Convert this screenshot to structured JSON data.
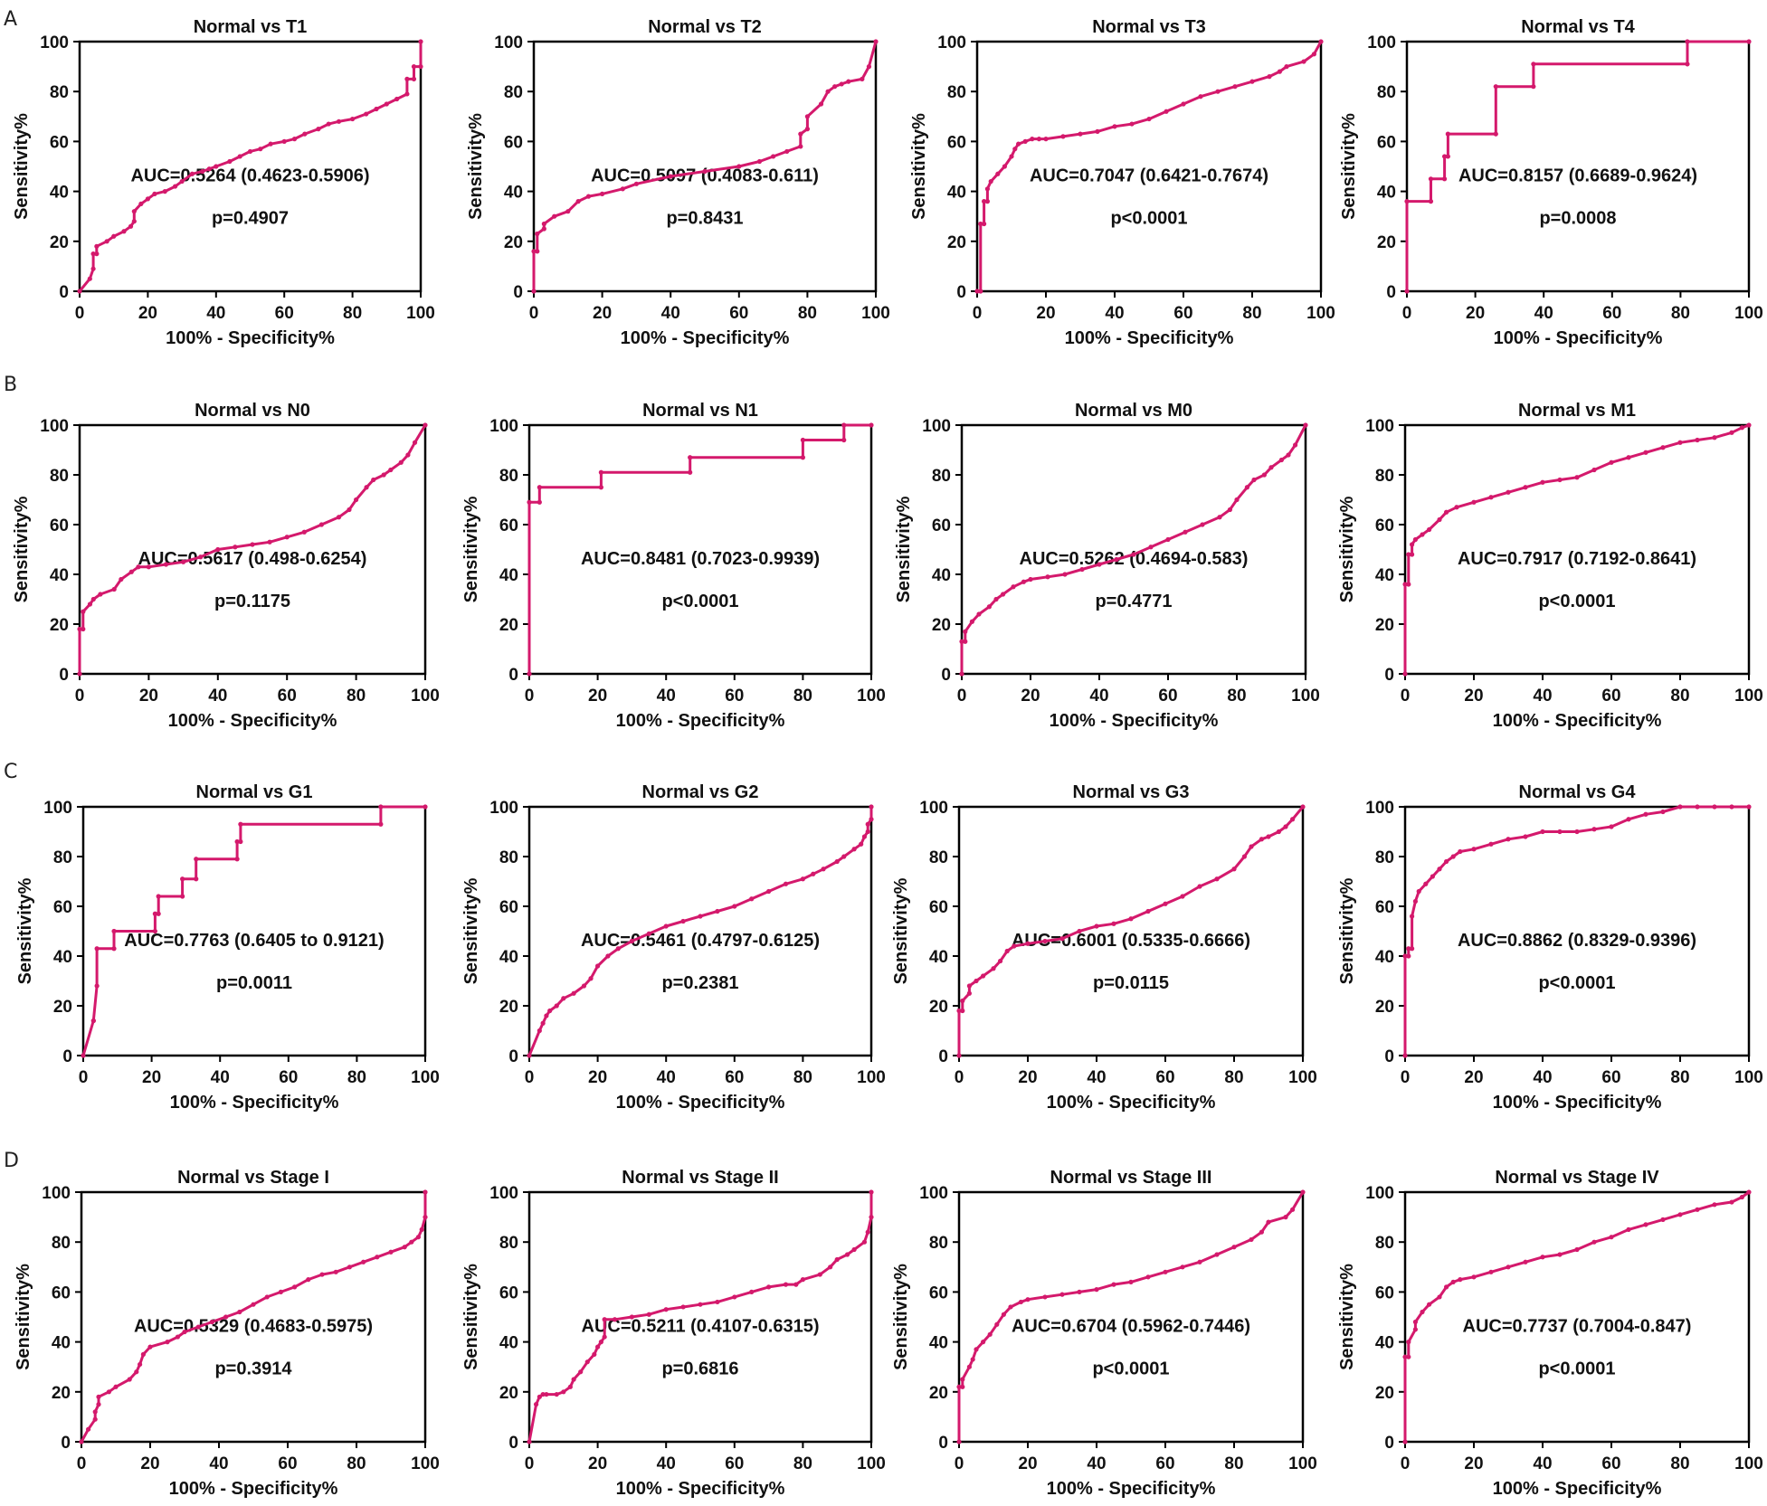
{
  "colors": {
    "curve": "#d4196c",
    "axis": "#000000"
  },
  "panel_letters": [
    "A",
    "B",
    "C",
    "D"
  ],
  "chart_data": [
    {
      "type": "line",
      "title": "Normal vs T1",
      "xlabel": "100% - Specificity%",
      "ylabel": "Sensitivity%",
      "xlim": [
        0,
        100
      ],
      "ylim": [
        0,
        100
      ],
      "ticks": [
        0,
        20,
        40,
        60,
        80,
        100
      ],
      "auc": "AUC=0.5264 (0.4623-0.5906)",
      "pvalue": "p=0.4907",
      "x": [
        0,
        3,
        4,
        4,
        5,
        5,
        8,
        10,
        13,
        15,
        16,
        16,
        18,
        20,
        22,
        25,
        28,
        30,
        33,
        36,
        38,
        40,
        44,
        47,
        50,
        53,
        56,
        60,
        63,
        66,
        70,
        73,
        76,
        80,
        84,
        87,
        90,
        93,
        96,
        96,
        98,
        98,
        100,
        100
      ],
      "y": [
        0,
        5,
        9,
        15,
        15,
        18,
        20,
        22,
        24,
        26,
        28,
        32,
        35,
        37,
        39,
        40,
        42,
        44,
        47,
        48,
        49,
        50,
        52,
        54,
        56,
        57,
        59,
        60,
        61,
        63,
        65,
        67,
        68,
        69,
        71,
        73,
        75,
        77,
        79,
        85,
        85,
        90,
        90,
        100
      ]
    },
    {
      "type": "line",
      "title": "Normal vs T2",
      "xlabel": "100% - Specificity%",
      "ylabel": "Sensitivity%",
      "xlim": [
        0,
        100
      ],
      "ylim": [
        0,
        100
      ],
      "ticks": [
        0,
        20,
        40,
        60,
        80,
        100
      ],
      "auc": "AUC=0.5097 (0.4083-0.611)",
      "pvalue": "p=0.8431",
      "x": [
        0,
        0,
        1,
        1,
        3,
        3,
        6,
        10,
        13,
        16,
        20,
        26,
        30,
        40,
        50,
        60,
        66,
        70,
        74,
        78,
        78,
        80,
        80,
        84,
        86,
        88,
        90,
        92,
        96,
        98,
        100
      ],
      "y": [
        0,
        16,
        16,
        23,
        25,
        27,
        30,
        32,
        36,
        38,
        39,
        41,
        43,
        46,
        48,
        50,
        52,
        54,
        56,
        58,
        63,
        65,
        70,
        75,
        80,
        82,
        83,
        84,
        85,
        90,
        100
      ]
    },
    {
      "type": "line",
      "title": "Normal vs T3",
      "xlabel": "100% - Specificity%",
      "ylabel": "Sensitivity%",
      "xlim": [
        0,
        100
      ],
      "ylim": [
        0,
        100
      ],
      "ticks": [
        0,
        20,
        40,
        60,
        80,
        100
      ],
      "auc": "AUC=0.7047 (0.6421-0.7674)",
      "pvalue": "p<0.0001",
      "x": [
        0,
        1,
        1,
        2,
        2,
        3,
        3,
        4,
        6,
        8,
        10,
        11,
        12,
        14,
        16,
        18,
        20,
        25,
        30,
        35,
        40,
        45,
        50,
        55,
        60,
        65,
        70,
        75,
        80,
        85,
        88,
        90,
        95,
        98,
        100
      ],
      "y": [
        0,
        0,
        27,
        27,
        36,
        36,
        41,
        44,
        47,
        50,
        54,
        57,
        59,
        60,
        61,
        61,
        61,
        62,
        63,
        64,
        66,
        67,
        69,
        72,
        75,
        78,
        80,
        82,
        84,
        86,
        88,
        90,
        92,
        95,
        100
      ]
    },
    {
      "type": "line",
      "title": "Normal vs T4",
      "xlabel": "100% - Specificity%",
      "ylabel": "Sensitivity%",
      "xlim": [
        0,
        100
      ],
      "ylim": [
        0,
        100
      ],
      "ticks": [
        0,
        20,
        40,
        60,
        80,
        100
      ],
      "auc": "AUC=0.8157 (0.6689-0.9624)",
      "pvalue": "p=0.0008",
      "x": [
        0,
        0,
        7,
        7,
        11,
        11,
        12,
        12,
        26,
        26,
        37,
        37,
        82,
        82,
        100
      ],
      "y": [
        0,
        36,
        36,
        45,
        45,
        54,
        54,
        63,
        63,
        82,
        82,
        91,
        91,
        100,
        100
      ]
    },
    {
      "type": "line",
      "title": "Normal vs N0",
      "xlabel": "100% - Specificity%",
      "ylabel": "Sensitivity%",
      "xlim": [
        0,
        100
      ],
      "ylim": [
        0,
        100
      ],
      "ticks": [
        0,
        20,
        40,
        60,
        80,
        100
      ],
      "auc": "AUC=0.5617 (0.498-0.6254)",
      "pvalue": "p=0.1175",
      "x": [
        0,
        0,
        1,
        1,
        3,
        4,
        6,
        10,
        12,
        15,
        17,
        20,
        25,
        30,
        35,
        40,
        45,
        50,
        55,
        60,
        65,
        70,
        75,
        78,
        80,
        83,
        85,
        88,
        90,
        93,
        95,
        97,
        100
      ],
      "y": [
        0,
        18,
        18,
        25,
        28,
        30,
        32,
        34,
        38,
        41,
        43,
        43,
        44,
        45,
        47,
        50,
        51,
        52,
        53,
        55,
        57,
        60,
        63,
        66,
        70,
        75,
        78,
        80,
        82,
        85,
        88,
        93,
        100
      ]
    },
    {
      "type": "line",
      "title": "Normal vs N1",
      "xlabel": "100% - Specificity%",
      "ylabel": "Sensitivity%",
      "xlim": [
        0,
        100
      ],
      "ylim": [
        0,
        100
      ],
      "ticks": [
        0,
        20,
        40,
        60,
        80,
        100
      ],
      "auc": "AUC=0.8481 (0.7023-0.9939)",
      "pvalue": "p<0.0001",
      "x": [
        0,
        0,
        3,
        3,
        21,
        21,
        47,
        47,
        80,
        80,
        92,
        92,
        100
      ],
      "y": [
        0,
        69,
        69,
        75,
        75,
        81,
        81,
        87,
        87,
        94,
        94,
        100,
        100
      ]
    },
    {
      "type": "line",
      "title": "Normal vs M0",
      "xlabel": "100% - Specificity%",
      "ylabel": "Sensitivity%",
      "xlim": [
        0,
        100
      ],
      "ylim": [
        0,
        100
      ],
      "ticks": [
        0,
        20,
        40,
        60,
        80,
        100
      ],
      "auc": "AUC=0.5262 (0.4694-0.583)",
      "pvalue": "p=0.4771",
      "x": [
        0,
        0,
        1,
        1,
        3,
        5,
        8,
        10,
        12,
        15,
        18,
        20,
        25,
        30,
        35,
        40,
        45,
        50,
        55,
        60,
        65,
        70,
        75,
        78,
        80,
        83,
        85,
        88,
        90,
        93,
        95,
        97,
        100
      ],
      "y": [
        0,
        13,
        13,
        17,
        21,
        24,
        27,
        30,
        32,
        35,
        37,
        38,
        39,
        40,
        42,
        44,
        46,
        48,
        51,
        54,
        57,
        60,
        63,
        66,
        70,
        75,
        78,
        80,
        83,
        86,
        88,
        92,
        100
      ]
    },
    {
      "type": "line",
      "title": "Normal vs M1",
      "xlabel": "100% - Specificity%",
      "ylabel": "Sensitivity%",
      "xlim": [
        0,
        100
      ],
      "ylim": [
        0,
        100
      ],
      "ticks": [
        0,
        20,
        40,
        60,
        80,
        100
      ],
      "auc": "AUC=0.7917 (0.7192-0.8641)",
      "pvalue": "p<0.0001",
      "x": [
        0,
        0,
        1,
        1,
        2,
        2,
        3,
        5,
        7,
        10,
        12,
        15,
        20,
        25,
        30,
        35,
        40,
        45,
        50,
        55,
        60,
        65,
        70,
        75,
        80,
        85,
        90,
        95,
        98,
        100
      ],
      "y": [
        0,
        36,
        36,
        48,
        48,
        52,
        54,
        56,
        58,
        62,
        65,
        67,
        69,
        71,
        73,
        75,
        77,
        78,
        79,
        82,
        85,
        87,
        89,
        91,
        93,
        94,
        95,
        97,
        99,
        100
      ]
    },
    {
      "type": "line",
      "title": "Normal vs G1",
      "xlabel": "100% - Specificity%",
      "ylabel": "Sensitivity%",
      "xlim": [
        0,
        100
      ],
      "ylim": [
        0,
        100
      ],
      "ticks": [
        0,
        20,
        40,
        60,
        80,
        100
      ],
      "auc": "AUC=0.7763 (0.6405 to 0.9121)",
      "pvalue": "p=0.0011",
      "x": [
        0,
        3,
        3,
        4,
        4,
        9,
        9,
        21,
        21,
        22,
        22,
        29,
        29,
        33,
        33,
        45,
        45,
        46,
        46,
        87,
        87,
        100
      ],
      "y": [
        0,
        14,
        14,
        28,
        43,
        43,
        50,
        50,
        57,
        57,
        64,
        64,
        71,
        71,
        79,
        79,
        86,
        86,
        93,
        93,
        100,
        100
      ]
    },
    {
      "type": "line",
      "title": "Normal vs G2",
      "xlabel": "100% - Specificity%",
      "ylabel": "Sensitivity%",
      "xlim": [
        0,
        100
      ],
      "ylim": [
        0,
        100
      ],
      "ticks": [
        0,
        20,
        40,
        60,
        80,
        100
      ],
      "auc": "AUC=0.5461 (0.4797-0.6125)",
      "pvalue": "p=0.2381",
      "x": [
        0,
        3,
        4,
        5,
        6,
        8,
        10,
        13,
        16,
        18,
        20,
        23,
        26,
        30,
        35,
        40,
        45,
        50,
        55,
        60,
        65,
        70,
        75,
        80,
        83,
        86,
        90,
        92,
        95,
        97,
        98,
        99,
        99,
        100,
        100
      ],
      "y": [
        0,
        10,
        13,
        16,
        18,
        20,
        23,
        25,
        28,
        31,
        36,
        40,
        43,
        46,
        49,
        52,
        54,
        56,
        58,
        60,
        63,
        66,
        69,
        71,
        73,
        75,
        78,
        80,
        83,
        85,
        88,
        90,
        93,
        95,
        100
      ]
    },
    {
      "type": "line",
      "title": "Normal vs G3",
      "xlabel": "100% - Specificity%",
      "ylabel": "Sensitivity%",
      "xlim": [
        0,
        100
      ],
      "ylim": [
        0,
        100
      ],
      "ticks": [
        0,
        20,
        40,
        60,
        80,
        100
      ],
      "auc": "AUC=0.6001 (0.5335-0.6666)",
      "pvalue": "p=0.0115",
      "x": [
        0,
        0,
        1,
        1,
        3,
        3,
        5,
        7,
        10,
        12,
        14,
        16,
        20,
        25,
        30,
        35,
        40,
        45,
        50,
        55,
        60,
        65,
        70,
        75,
        80,
        83,
        85,
        88,
        90,
        93,
        95,
        97,
        100
      ],
      "y": [
        0,
        18,
        18,
        22,
        25,
        28,
        30,
        32,
        35,
        38,
        42,
        44,
        45,
        46,
        47,
        50,
        52,
        53,
        55,
        58,
        61,
        64,
        68,
        71,
        75,
        80,
        84,
        87,
        88,
        90,
        92,
        95,
        100
      ]
    },
    {
      "type": "line",
      "title": "Normal vs G4",
      "xlabel": "100% - Specificity%",
      "ylabel": "Sensitivity%",
      "xlim": [
        0,
        100
      ],
      "ylim": [
        0,
        100
      ],
      "ticks": [
        0,
        20,
        40,
        60,
        80,
        100
      ],
      "auc": "AUC=0.8862 (0.8329-0.9396)",
      "pvalue": "p<0.0001",
      "x": [
        0,
        0,
        1,
        1,
        2,
        2,
        3,
        4,
        6,
        8,
        10,
        12,
        14,
        16,
        20,
        25,
        30,
        35,
        40,
        45,
        50,
        55,
        60,
        65,
        70,
        75,
        80,
        85,
        90,
        95,
        100
      ],
      "y": [
        0,
        40,
        40,
        43,
        43,
        56,
        62,
        66,
        69,
        72,
        75,
        78,
        80,
        82,
        83,
        85,
        87,
        88,
        90,
        90,
        90,
        91,
        92,
        95,
        97,
        98,
        100,
        100,
        100,
        100,
        100
      ]
    },
    {
      "type": "line",
      "title": "Normal vs Stage I",
      "xlabel": "100% - Specificity%",
      "ylabel": "Sensitivity%",
      "xlim": [
        0,
        100
      ],
      "ylim": [
        0,
        100
      ],
      "ticks": [
        0,
        20,
        40,
        60,
        80,
        100
      ],
      "auc": "AUC=0.5329 (0.4683-0.5975)",
      "pvalue": "p=0.3914",
      "x": [
        0,
        2,
        4,
        4,
        5,
        5,
        8,
        10,
        14,
        16,
        17,
        18,
        20,
        25,
        28,
        30,
        34,
        38,
        42,
        46,
        50,
        54,
        58,
        62,
        66,
        70,
        74,
        78,
        82,
        86,
        90,
        94,
        96,
        98,
        99,
        100,
        100
      ],
      "y": [
        0,
        5,
        9,
        12,
        15,
        18,
        20,
        22,
        25,
        28,
        31,
        35,
        38,
        40,
        42,
        44,
        46,
        48,
        50,
        52,
        55,
        58,
        60,
        62,
        65,
        67,
        68,
        70,
        72,
        74,
        76,
        78,
        80,
        82,
        85,
        90,
        100
      ]
    },
    {
      "type": "line",
      "title": "Normal vs Stage II",
      "xlabel": "100% - Specificity%",
      "ylabel": "Sensitivity%",
      "xlim": [
        0,
        100
      ],
      "ylim": [
        0,
        100
      ],
      "ticks": [
        0,
        20,
        40,
        60,
        80,
        100
      ],
      "auc": "AUC=0.5211 (0.4107-0.6315)",
      "pvalue": "p=0.6816",
      "x": [
        0,
        2,
        3,
        4,
        5,
        8,
        10,
        12,
        13,
        15,
        17,
        19,
        20,
        21,
        22,
        22,
        25,
        30,
        35,
        40,
        45,
        50,
        55,
        60,
        65,
        70,
        75,
        78,
        80,
        85,
        88,
        90,
        93,
        95,
        98,
        99,
        100,
        100
      ],
      "y": [
        0,
        15,
        18,
        19,
        19,
        19,
        20,
        22,
        25,
        28,
        32,
        35,
        38,
        40,
        42,
        49,
        49,
        50,
        51,
        53,
        54,
        55,
        56,
        58,
        60,
        62,
        63,
        63,
        65,
        67,
        70,
        73,
        75,
        77,
        80,
        84,
        90,
        100
      ]
    },
    {
      "type": "line",
      "title": "Normal vs Stage III",
      "xlabel": "100% - Specificity%",
      "ylabel": "Sensitivity%",
      "xlim": [
        0,
        100
      ],
      "ylim": [
        0,
        100
      ],
      "ticks": [
        0,
        20,
        40,
        60,
        80,
        100
      ],
      "auc": "AUC=0.6704 (0.5962-0.7446)",
      "pvalue": "p<0.0001",
      "x": [
        0,
        0,
        1,
        1,
        3,
        4,
        5,
        7,
        9,
        11,
        13,
        15,
        18,
        20,
        25,
        30,
        35,
        40,
        45,
        50,
        55,
        60,
        65,
        70,
        75,
        80,
        85,
        88,
        90,
        95,
        97,
        100
      ],
      "y": [
        0,
        22,
        22,
        25,
        30,
        33,
        37,
        40,
        43,
        47,
        51,
        54,
        56,
        57,
        58,
        59,
        60,
        61,
        63,
        64,
        66,
        68,
        70,
        72,
        75,
        78,
        81,
        84,
        88,
        90,
        93,
        100
      ]
    },
    {
      "type": "line",
      "title": "Normal vs Stage IV",
      "xlabel": "100% - Specificity%",
      "ylabel": "Sensitivity%",
      "xlim": [
        0,
        100
      ],
      "ylim": [
        0,
        100
      ],
      "ticks": [
        0,
        20,
        40,
        60,
        80,
        100
      ],
      "auc": "AUC=0.7737 (0.7004-0.847)",
      "pvalue": "p<0.0001",
      "x": [
        0,
        0,
        1,
        1,
        3,
        3,
        5,
        7,
        10,
        12,
        14,
        16,
        20,
        25,
        30,
        35,
        40,
        45,
        50,
        55,
        60,
        65,
        70,
        75,
        80,
        85,
        90,
        95,
        98,
        100
      ],
      "y": [
        0,
        34,
        34,
        40,
        45,
        48,
        52,
        55,
        58,
        62,
        64,
        65,
        66,
        68,
        70,
        72,
        74,
        75,
        77,
        80,
        82,
        85,
        87,
        89,
        91,
        93,
        95,
        96,
        98,
        100
      ]
    }
  ]
}
